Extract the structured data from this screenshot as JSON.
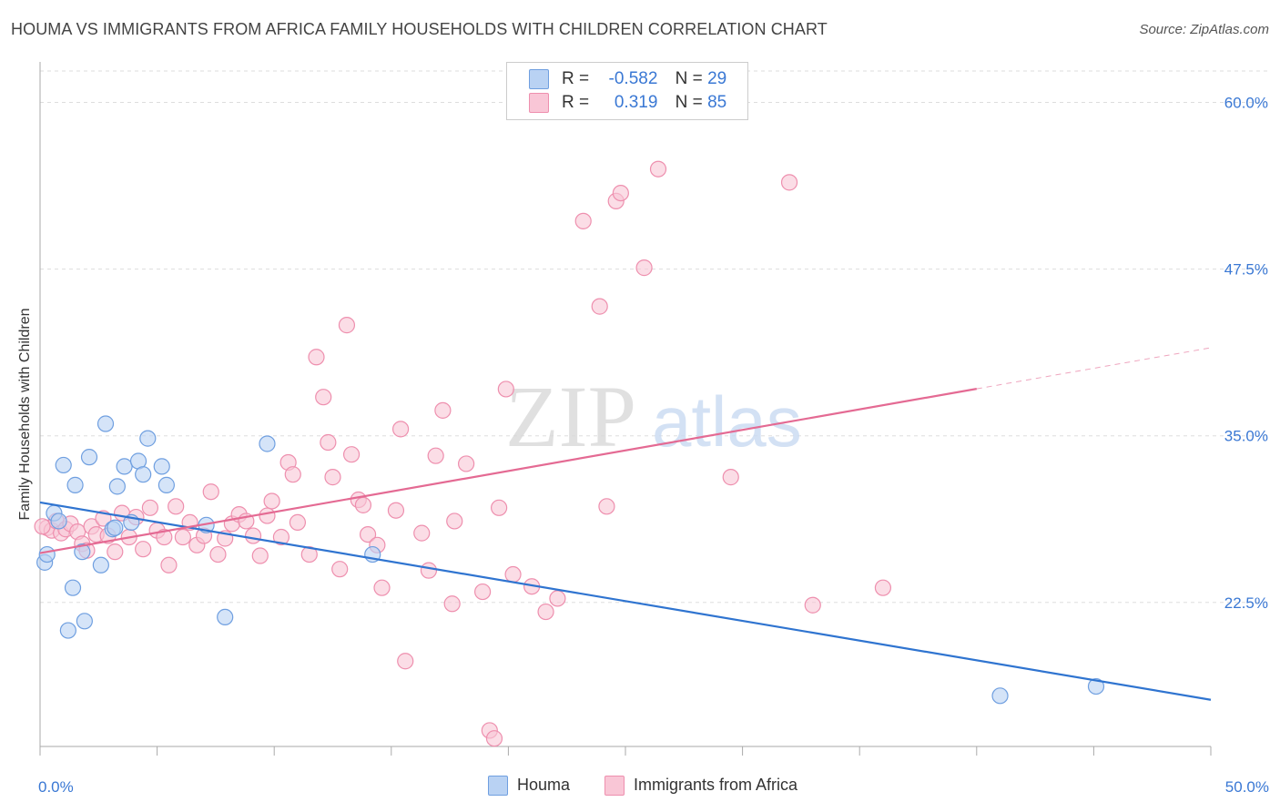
{
  "title": "HOUMA VS IMMIGRANTS FROM AFRICA FAMILY HOUSEHOLDS WITH CHILDREN CORRELATION CHART",
  "source": "Source: ZipAtlas.com",
  "watermark": {
    "zip": "ZIP",
    "atlas": "atlas"
  },
  "legend": {
    "houma": {
      "r_label": "R =",
      "r_value": "-0.582",
      "n_label": "N =",
      "n_value": "29"
    },
    "africa": {
      "r_label": "R =",
      "r_value": "0.319",
      "n_label": "N =",
      "n_value": "85"
    }
  },
  "colors": {
    "houma_fill": "#b9d2f3",
    "houma_stroke": "#6f9fe0",
    "houma_line": "#2f74d0",
    "africa_fill": "#f9c6d6",
    "africa_stroke": "#ee8fae",
    "africa_line": "#e46a93",
    "grid": "#dddddd",
    "tick_label": "#3a78d4"
  },
  "chart_data": {
    "type": "scatter",
    "xlabel": "",
    "ylabel": "Family Households with Children",
    "xlim": [
      0,
      50
    ],
    "ylim": [
      11.7,
      62.9
    ],
    "x_tick_labels": [
      "0.0%",
      "50.0%"
    ],
    "y_ticks": [
      22.5,
      35.0,
      47.5,
      60.0
    ],
    "y_tick_labels": [
      "22.5%",
      "35.0%",
      "47.5%",
      "60.0%"
    ],
    "grid": true,
    "legend_position": "top-center",
    "series": [
      {
        "name": "Houma",
        "trend": {
          "x0": 0,
          "y0": 30.0,
          "x1": 50,
          "y1": 15.2,
          "dashed_from": null
        },
        "points": [
          [
            0.2,
            25.5
          ],
          [
            0.3,
            26.1
          ],
          [
            0.6,
            29.2
          ],
          [
            0.8,
            28.6
          ],
          [
            1.0,
            32.8
          ],
          [
            1.2,
            20.4
          ],
          [
            1.4,
            23.6
          ],
          [
            1.5,
            31.3
          ],
          [
            1.8,
            26.3
          ],
          [
            1.9,
            21.1
          ],
          [
            2.1,
            33.4
          ],
          [
            2.6,
            25.3
          ],
          [
            2.8,
            35.9
          ],
          [
            3.1,
            28.0
          ],
          [
            3.2,
            28.1
          ],
          [
            3.3,
            31.2
          ],
          [
            3.6,
            32.7
          ],
          [
            3.9,
            28.5
          ],
          [
            4.2,
            33.1
          ],
          [
            4.4,
            32.1
          ],
          [
            4.6,
            34.8
          ],
          [
            5.2,
            32.7
          ],
          [
            5.4,
            31.3
          ],
          [
            7.1,
            28.3
          ],
          [
            7.9,
            21.4
          ],
          [
            9.7,
            34.4
          ],
          [
            14.2,
            26.1
          ],
          [
            41.0,
            15.5
          ],
          [
            45.1,
            16.2
          ]
        ]
      },
      {
        "name": "Immigrants from Africa",
        "trend": {
          "x0": 0,
          "y0": 26.2,
          "x1": 50,
          "y1": 41.6,
          "dashed_from": 40
        },
        "points": [
          [
            0.3,
            28.1
          ],
          [
            0.5,
            27.9
          ],
          [
            0.7,
            28.6
          ],
          [
            0.9,
            27.7
          ],
          [
            1.1,
            28.0
          ],
          [
            1.3,
            28.4
          ],
          [
            1.6,
            27.8
          ],
          [
            1.8,
            26.9
          ],
          [
            2.0,
            26.4
          ],
          [
            2.2,
            28.2
          ],
          [
            2.4,
            27.6
          ],
          [
            2.7,
            28.8
          ],
          [
            2.9,
            27.5
          ],
          [
            3.2,
            26.3
          ],
          [
            3.5,
            29.2
          ],
          [
            3.8,
            27.4
          ],
          [
            4.1,
            28.9
          ],
          [
            4.4,
            26.5
          ],
          [
            4.7,
            29.6
          ],
          [
            5.0,
            27.9
          ],
          [
            5.3,
            27.4
          ],
          [
            5.5,
            25.3
          ],
          [
            5.8,
            29.7
          ],
          [
            6.1,
            27.4
          ],
          [
            6.4,
            28.5
          ],
          [
            6.7,
            26.8
          ],
          [
            7.0,
            27.5
          ],
          [
            7.3,
            30.8
          ],
          [
            7.6,
            26.1
          ],
          [
            7.9,
            27.3
          ],
          [
            8.2,
            28.4
          ],
          [
            8.5,
            29.1
          ],
          [
            8.8,
            28.6
          ],
          [
            9.1,
            27.5
          ],
          [
            9.4,
            26.0
          ],
          [
            9.7,
            29.0
          ],
          [
            9.9,
            30.1
          ],
          [
            10.3,
            27.4
          ],
          [
            10.6,
            33.0
          ],
          [
            10.8,
            32.1
          ],
          [
            11.0,
            28.5
          ],
          [
            11.5,
            26.1
          ],
          [
            11.8,
            40.9
          ],
          [
            12.1,
            37.9
          ],
          [
            12.3,
            34.5
          ],
          [
            12.5,
            31.9
          ],
          [
            12.8,
            25.0
          ],
          [
            13.1,
            43.3
          ],
          [
            13.3,
            33.6
          ],
          [
            13.6,
            30.2
          ],
          [
            13.8,
            29.8
          ],
          [
            14.0,
            27.6
          ],
          [
            14.4,
            26.8
          ],
          [
            14.6,
            23.6
          ],
          [
            15.2,
            29.4
          ],
          [
            15.4,
            35.5
          ],
          [
            15.6,
            18.1
          ],
          [
            16.3,
            27.7
          ],
          [
            16.6,
            24.9
          ],
          [
            16.9,
            33.5
          ],
          [
            17.2,
            36.9
          ],
          [
            17.6,
            22.4
          ],
          [
            17.7,
            28.6
          ],
          [
            18.2,
            32.9
          ],
          [
            18.9,
            23.3
          ],
          [
            19.2,
            12.9
          ],
          [
            19.4,
            12.3
          ],
          [
            19.6,
            29.6
          ],
          [
            19.9,
            38.5
          ],
          [
            20.2,
            24.6
          ],
          [
            21.0,
            23.7
          ],
          [
            21.6,
            21.8
          ],
          [
            22.1,
            22.8
          ],
          [
            23.2,
            51.1
          ],
          [
            23.9,
            44.7
          ],
          [
            24.2,
            29.7
          ],
          [
            24.6,
            52.6
          ],
          [
            24.8,
            53.2
          ],
          [
            25.8,
            47.6
          ],
          [
            26.4,
            55.0
          ],
          [
            29.5,
            31.9
          ],
          [
            32.0,
            54.0
          ],
          [
            33.0,
            22.3
          ],
          [
            36.0,
            23.6
          ],
          [
            0.1,
            28.2
          ]
        ]
      }
    ]
  },
  "bottom_legend": {
    "houma": "Houma",
    "africa": "Immigrants from Africa"
  }
}
